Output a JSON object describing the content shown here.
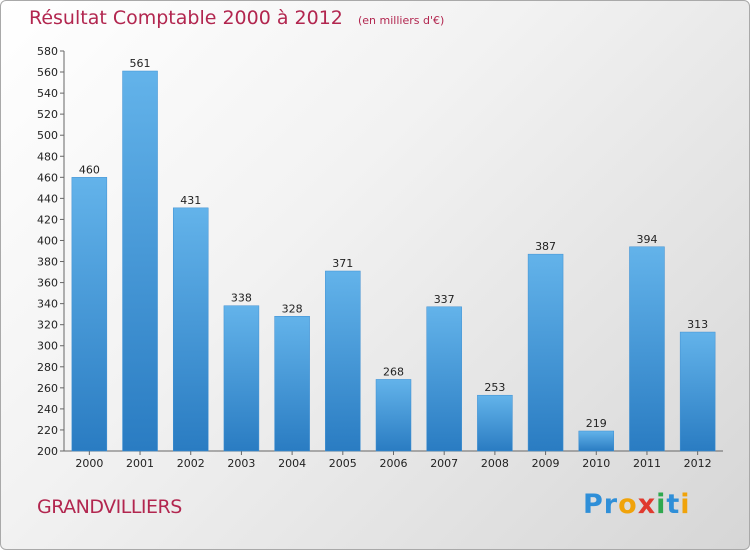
{
  "title": "Résultat Comptable 2000 à 2012",
  "subtitle": "(en milliers d'€)",
  "commune": "GRANDVILLIERS",
  "logo": {
    "letters": [
      "P",
      "r",
      "o",
      "x",
      "i",
      "t",
      "i"
    ],
    "colors": [
      "#2f8fd8",
      "#2f8fd8",
      "#f0a30a",
      "#e03a2f",
      "#2fa84f",
      "#2f8fd8",
      "#f0a30a"
    ]
  },
  "colors": {
    "bar_light": "#63b3ea",
    "bar_dark": "#2a7cc2",
    "text_accent": "#b2264f"
  },
  "chart_data": {
    "type": "bar",
    "categories": [
      "2000",
      "2001",
      "2002",
      "2003",
      "2004",
      "2005",
      "2006",
      "2007",
      "2008",
      "2009",
      "2010",
      "2011",
      "2012"
    ],
    "values": [
      460,
      561,
      431,
      338,
      328,
      371,
      268,
      337,
      253,
      387,
      219,
      394,
      313
    ],
    "title": "Résultat Comptable 2000 à 2012",
    "subtitle": "(en milliers d'€)",
    "xlabel": "",
    "ylabel": "",
    "ylim": [
      200,
      580
    ],
    "yticks": [
      200,
      220,
      240,
      260,
      280,
      300,
      320,
      340,
      360,
      380,
      400,
      420,
      440,
      460,
      480,
      500,
      520,
      540,
      560,
      580
    ],
    "grid": false
  }
}
